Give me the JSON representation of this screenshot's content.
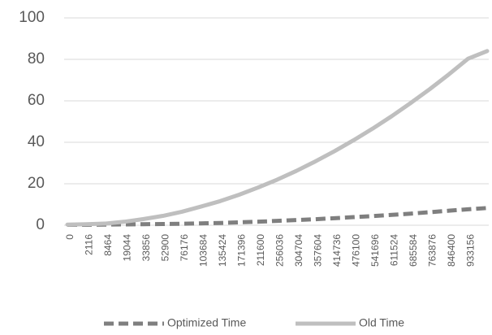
{
  "chart_data": {
    "type": "line",
    "categories": [
      "0",
      "2116",
      "8464",
      "19044",
      "33856",
      "52900",
      "76176",
      "103684",
      "135424",
      "171396",
      "211600",
      "256036",
      "304704",
      "357604",
      "414736",
      "476100",
      "541696",
      "611524",
      "685584",
      "763876",
      "846400",
      "933156",
      null
    ],
    "series": [
      {
        "name": "Optimized Time",
        "color": "#7f7f7f",
        "dash": true,
        "values": [
          0.2,
          0.2,
          0.3,
          0.4,
          0.5,
          0.6,
          0.7,
          0.9,
          1.1,
          1.4,
          1.7,
          2.1,
          2.5,
          2.9,
          3.4,
          3.9,
          4.4,
          5.0,
          5.6,
          6.3,
          7.0,
          7.7,
          8.3
        ]
      },
      {
        "name": "Old Time",
        "color": "#bfbfbf",
        "dash": false,
        "values": [
          0.3,
          0.5,
          0.8,
          1.7,
          3.0,
          4.5,
          6.5,
          9.0,
          11.6,
          14.7,
          18.2,
          22.0,
          26.2,
          30.8,
          35.7,
          41.0,
          46.6,
          52.6,
          59.0,
          65.7,
          72.8,
          80.3,
          84.0
        ]
      }
    ],
    "ylim": [
      0,
      100
    ],
    "yticks": [
      0,
      20,
      40,
      60,
      80,
      100
    ],
    "grid": true,
    "legend": "bottom"
  }
}
